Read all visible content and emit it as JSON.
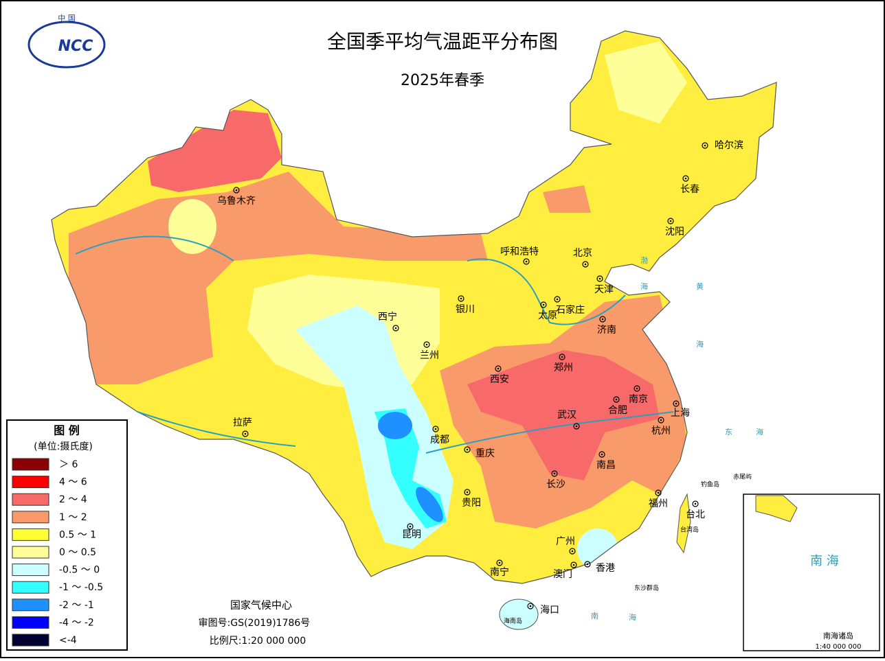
{
  "header": {
    "logo_top": "中 国",
    "logo_text": "NCC",
    "title": "全国季平均气温距平分布图",
    "subtitle": "2025年春季"
  },
  "legend": {
    "title": "图 例",
    "unit": "(单位:摄氏度)",
    "items": [
      {
        "label": "＞ 6",
        "color": "#8b0000"
      },
      {
        "label": "4 ～ 6",
        "color": "#ff0000"
      },
      {
        "label": "2 ～ 4",
        "color": "#f86a6a"
      },
      {
        "label": "1 ～ 2",
        "color": "#f99a6b"
      },
      {
        "label": "0.5 ～ 1",
        "color": "#ffff33"
      },
      {
        "label": "0 ～ 0.5",
        "color": "#ffff99"
      },
      {
        "label": "-0.5 ～ 0",
        "color": "#ccffff"
      },
      {
        "label": "-1 ～ -0.5",
        "color": "#33ffff"
      },
      {
        "label": "-2 ～ -1",
        "color": "#1e90ff"
      },
      {
        "label": "-4 ～ -2",
        "color": "#0000ff"
      },
      {
        "label": "<-4",
        "color": "#000033"
      }
    ]
  },
  "cities": [
    "哈尔滨",
    "长春",
    "沈阳",
    "乌鲁木齐",
    "呼和浩特",
    "北京",
    "天津",
    "石家庄",
    "太原",
    "银川",
    "西宁",
    "兰州",
    "济南",
    "郑州",
    "西安",
    "南京",
    "合肥",
    "上海",
    "武汉",
    "杭州",
    "拉萨",
    "成都",
    "重庆",
    "南昌",
    "长沙",
    "贵阳",
    "福州",
    "台北",
    "昆明",
    "广州",
    "南宁",
    "澳门",
    "香港",
    "海口"
  ],
  "places": {
    "diaoyu": "钓鱼岛",
    "chiwei": "赤尾屿",
    "taiwan": "台湾岛",
    "dongsha": "东沙群岛",
    "hainan": "海南岛"
  },
  "seas": {
    "bo1": "渤",
    "bo2": "海",
    "huang1": "黄",
    "huang2": "海",
    "dong1": "东",
    "dong2": "海",
    "nan1": "南",
    "nan2": "海"
  },
  "inset": {
    "sea": "南 海",
    "islands": "南海诸岛",
    "scale": "1:40 000 000"
  },
  "footer": {
    "org": "国家气候中心",
    "approval": "审图号:GS(2019)1786号",
    "scale": "比例尺:1:20 000 000"
  }
}
